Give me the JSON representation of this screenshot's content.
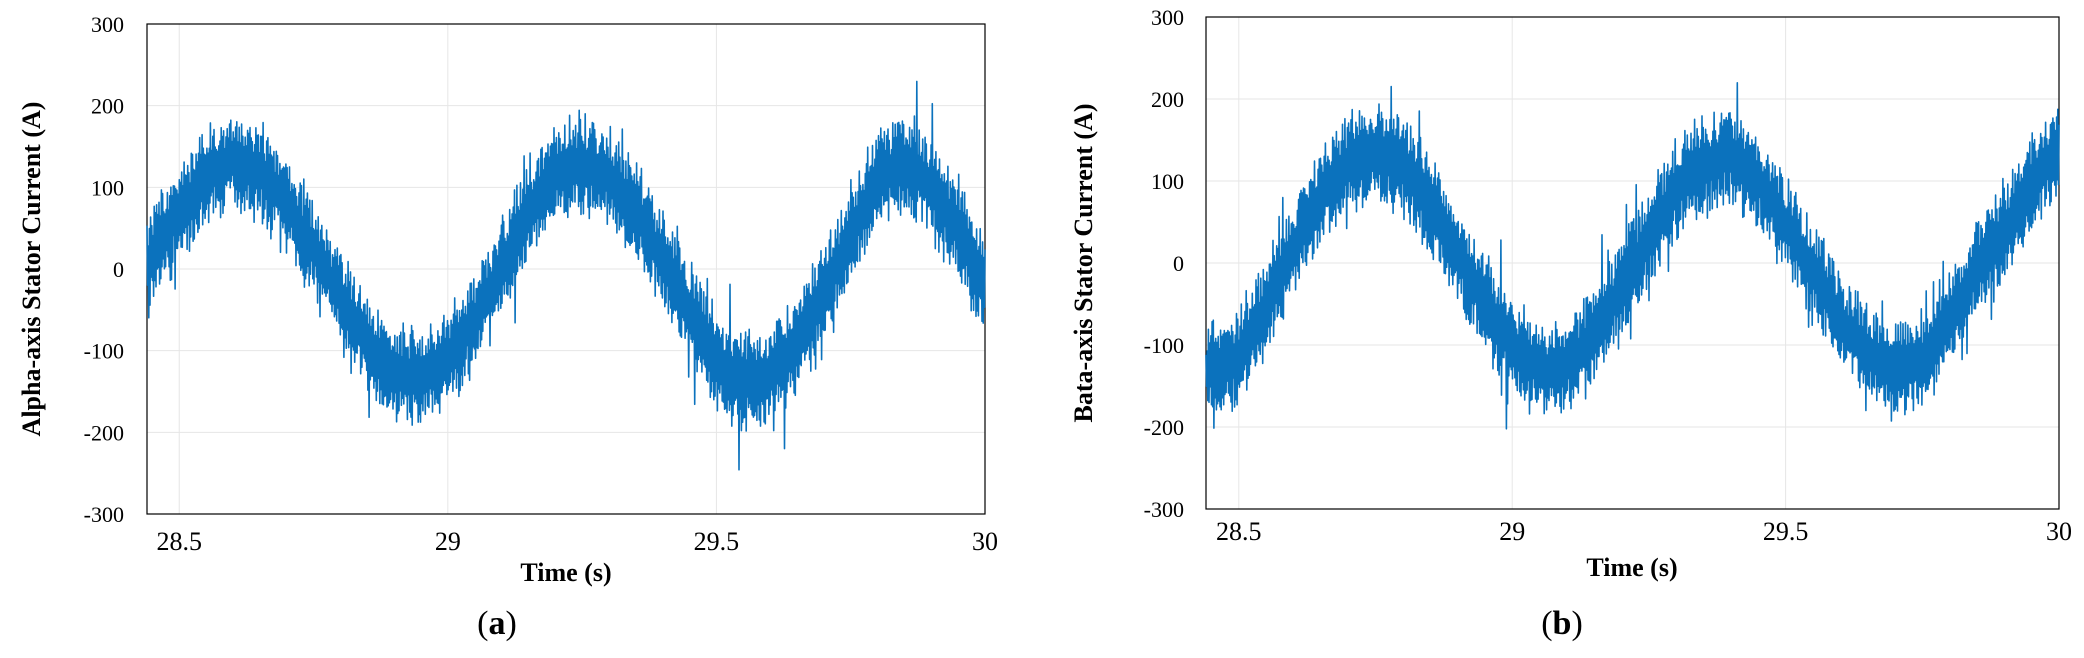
{
  "chart_data": [
    {
      "type": "line",
      "panel_label": "a",
      "xlabel": "Time (s)",
      "ylabel": "Alpha-axis Stator Current (A)",
      "xlim": [
        28.44,
        30
      ],
      "ylim": [
        -300,
        300
      ],
      "xticks": [
        28.5,
        29,
        29.5,
        30
      ],
      "xtick_labels": [
        "28.5",
        "29",
        "29.5",
        "30"
      ],
      "yticks": [
        -300,
        -200,
        -100,
        0,
        100,
        200,
        300
      ],
      "ytick_labels": [
        "-300",
        "-200",
        "-100",
        "0",
        "100",
        "200",
        "300"
      ],
      "grid": true,
      "series": [
        {
          "color": "#0b72bd",
          "description": "noisy sinusoidal current, envelope about ±60 A around the mean",
          "x": [
            28.44,
            28.5,
            28.55,
            28.6,
            28.65,
            28.7,
            28.75,
            28.8,
            28.85,
            28.9,
            28.95,
            29.0,
            29.05,
            29.1,
            29.15,
            29.2,
            29.25,
            29.3,
            29.35,
            29.4,
            29.45,
            29.5,
            29.55,
            29.6,
            29.65,
            29.7,
            29.75,
            29.8,
            29.85,
            29.9,
            29.95,
            30.0
          ],
          "mean": [
            5,
            70,
            115,
            135,
            120,
            80,
            25,
            -35,
            -90,
            -130,
            -135,
            -110,
            -60,
            0,
            70,
            115,
            130,
            110,
            70,
            10,
            -50,
            -110,
            -140,
            -130,
            -90,
            -30,
            40,
            110,
            130,
            100,
            50,
            -30
          ]
        }
      ]
    },
    {
      "type": "line",
      "panel_label": "b",
      "xlabel": "Time (s)",
      "ylabel": "Bata-axis Stator Current (A)",
      "xlim": [
        28.44,
        30
      ],
      "ylim": [
        -300,
        300
      ],
      "xticks": [
        28.5,
        29,
        29.5,
        30
      ],
      "xtick_labels": [
        "28.5",
        "29",
        "29.5",
        "30"
      ],
      "yticks": [
        -300,
        -200,
        -100,
        0,
        100,
        200,
        300
      ],
      "ytick_labels": [
        "-300",
        "-200",
        "-100",
        "0",
        "100",
        "200",
        "300"
      ],
      "grid": true,
      "series": [
        {
          "color": "#0b72bd",
          "description": "noisy sinusoidal current, envelope about ±60 A around the mean",
          "x": [
            28.44,
            28.5,
            28.55,
            28.6,
            28.65,
            28.7,
            28.75,
            28.8,
            28.85,
            28.9,
            28.95,
            29.0,
            29.05,
            29.1,
            29.15,
            29.2,
            29.25,
            29.3,
            29.35,
            29.4,
            29.45,
            29.5,
            29.55,
            29.6,
            29.65,
            29.7,
            29.75,
            29.8,
            29.85,
            29.9,
            29.95,
            30.0
          ],
          "mean": [
            -130,
            -120,
            -50,
            20,
            80,
            120,
            135,
            120,
            70,
            10,
            -50,
            -100,
            -130,
            -125,
            -90,
            -30,
            30,
            90,
            120,
            130,
            100,
            50,
            -10,
            -70,
            -110,
            -130,
            -120,
            -70,
            -10,
            40,
            100,
            140
          ]
        }
      ]
    }
  ],
  "captions": [
    {
      "open": "(",
      "letter": "a",
      "close": ")"
    },
    {
      "open": "(",
      "letter": "b",
      "close": ")"
    }
  ]
}
